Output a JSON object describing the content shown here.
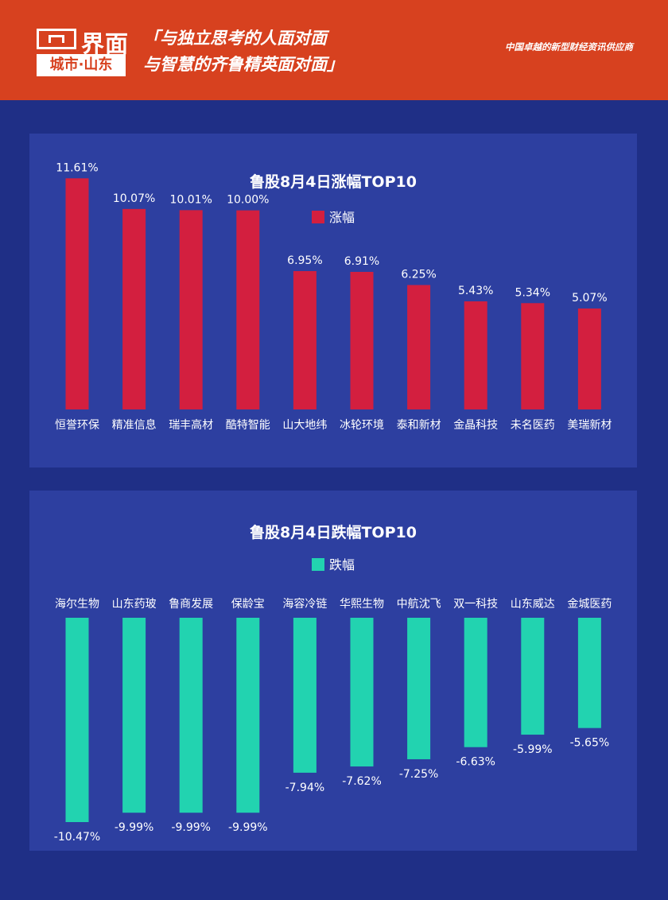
{
  "header": {
    "logo_name": "界面",
    "logo_sub": "城市·山东",
    "slogan_line1": "「与独立思考的人面对面",
    "slogan_line2": "与智慧的齐鲁精英面对面」",
    "tagline": "中国卓越的新型财经资讯供应商"
  },
  "colors": {
    "background": "#1f2f86",
    "panel": "#2d3fa0",
    "header": "#d7411f",
    "gain": "#d31f3f",
    "loss": "#22d3b0"
  },
  "chart_data": [
    {
      "type": "bar",
      "title": "鲁股8月4日涨幅TOP10",
      "legend": [
        "涨幅"
      ],
      "legend_position": "top-center",
      "categories": [
        "恒誉环保",
        "精准信息",
        "瑞丰高材",
        "酷特智能",
        "山大地纬",
        "冰轮环境",
        "泰和新材",
        "金晶科技",
        "未名医药",
        "美瑞新材"
      ],
      "series": [
        {
          "name": "涨幅",
          "values": [
            11.61,
            10.07,
            10.01,
            10.0,
            6.95,
            6.91,
            6.25,
            5.43,
            5.34,
            5.07
          ],
          "labels": [
            "11.61%",
            "10.07%",
            "10.01%",
            "10.00%",
            "6.95%",
            "6.91%",
            "6.25%",
            "5.43%",
            "5.34%",
            "5.07%"
          ]
        }
      ],
      "ylim": [
        0,
        12.5
      ],
      "grid": false
    },
    {
      "type": "bar",
      "title": "鲁股8月4日跌幅TOP10",
      "legend": [
        "跌幅"
      ],
      "legend_position": "top-center",
      "categories": [
        "海尔生物",
        "山东药玻",
        "鲁商发展",
        "保龄宝",
        "海容冷链",
        "华熙生物",
        "中航沈飞",
        "双一科技",
        "山东威达",
        "金城医药"
      ],
      "series": [
        {
          "name": "跌幅",
          "values": [
            -10.47,
            -9.99,
            -9.99,
            -9.99,
            -7.94,
            -7.62,
            -7.25,
            -6.63,
            -5.99,
            -5.65
          ],
          "labels": [
            "-10.47%",
            "-9.99%",
            "-9.99%",
            "-9.99%",
            "-7.94%",
            "-7.62%",
            "-7.25%",
            "-6.63%",
            "-5.99%",
            "-5.65%"
          ]
        }
      ],
      "ylim": [
        -10.47,
        0
      ],
      "grid": false
    }
  ]
}
